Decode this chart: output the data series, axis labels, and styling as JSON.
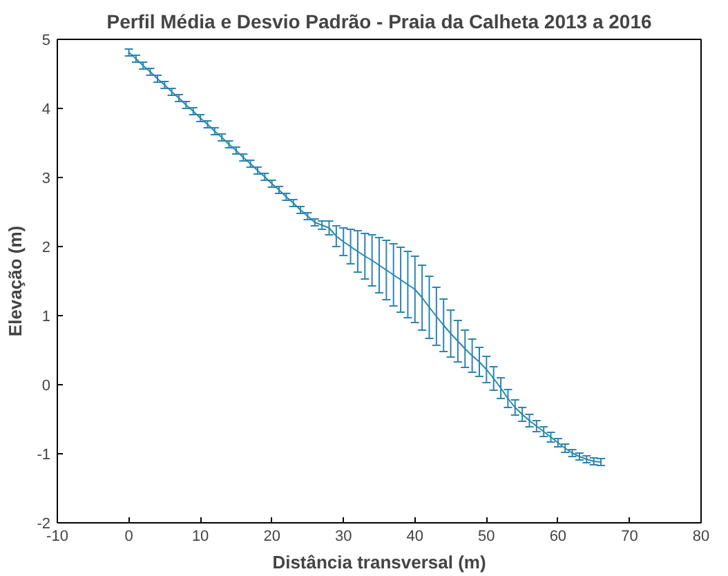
{
  "chart_data": {
    "type": "line",
    "title": "Perfil Média e Desvio Padrão - Praia da Calheta 2013 a 2016",
    "xlabel": "Distância transversal (m)",
    "ylabel": "Elevação (m)",
    "x": [
      0,
      1,
      2,
      3,
      4,
      5,
      6,
      7,
      8,
      9,
      10,
      11,
      12,
      13,
      14,
      15,
      16,
      17,
      18,
      19,
      20,
      21,
      22,
      23,
      24,
      25,
      26,
      27,
      28,
      29,
      30,
      31,
      32,
      33,
      34,
      35,
      36,
      37,
      38,
      39,
      40,
      41,
      42,
      43,
      44,
      45,
      46,
      47,
      48,
      49,
      50,
      51,
      52,
      53,
      54,
      55,
      56,
      57,
      58,
      59,
      60,
      61,
      62,
      63,
      64,
      65,
      66
    ],
    "series": [
      {
        "color": "#2a86b0",
        "values": [
          4.81,
          4.72,
          4.62,
          4.53,
          4.43,
          4.34,
          4.24,
          4.15,
          4.05,
          3.96,
          3.86,
          3.77,
          3.67,
          3.58,
          3.48,
          3.39,
          3.29,
          3.2,
          3.1,
          3.01,
          2.91,
          2.82,
          2.72,
          2.63,
          2.53,
          2.44,
          2.35,
          2.31,
          2.27,
          2.15,
          2.07,
          2.0,
          1.93,
          1.86,
          1.8,
          1.73,
          1.66,
          1.59,
          1.52,
          1.45,
          1.38,
          1.26,
          1.12,
          0.99,
          0.86,
          0.74,
          0.63,
          0.52,
          0.42,
          0.33,
          0.22,
          0.09,
          -0.05,
          -0.2,
          -0.33,
          -0.43,
          -0.52,
          -0.6,
          -0.68,
          -0.76,
          -0.84,
          -0.92,
          -0.99,
          -1.04,
          -1.08,
          -1.11,
          -1.12
        ],
        "errors": [
          0.05,
          0.05,
          0.05,
          0.05,
          0.05,
          0.05,
          0.05,
          0.05,
          0.05,
          0.05,
          0.05,
          0.05,
          0.05,
          0.05,
          0.05,
          0.05,
          0.05,
          0.05,
          0.05,
          0.05,
          0.05,
          0.05,
          0.05,
          0.05,
          0.05,
          0.05,
          0.05,
          0.06,
          0.1,
          0.15,
          0.2,
          0.25,
          0.3,
          0.33,
          0.37,
          0.4,
          0.43,
          0.45,
          0.47,
          0.48,
          0.48,
          0.47,
          0.45,
          0.42,
          0.38,
          0.34,
          0.3,
          0.27,
          0.24,
          0.21,
          0.19,
          0.17,
          0.15,
          0.13,
          0.11,
          0.1,
          0.09,
          0.08,
          0.07,
          0.07,
          0.06,
          0.06,
          0.05,
          0.05,
          0.05,
          0.05,
          0.05
        ]
      }
    ],
    "xlim": [
      -10,
      80
    ],
    "ylim": [
      -2,
      5
    ],
    "xticks": [
      -10,
      0,
      10,
      20,
      30,
      40,
      50,
      60,
      70,
      80
    ],
    "yticks": [
      -2,
      -1,
      0,
      1,
      2,
      3,
      4,
      5
    ],
    "grid": false,
    "marker": "none",
    "line_style": "solid"
  }
}
